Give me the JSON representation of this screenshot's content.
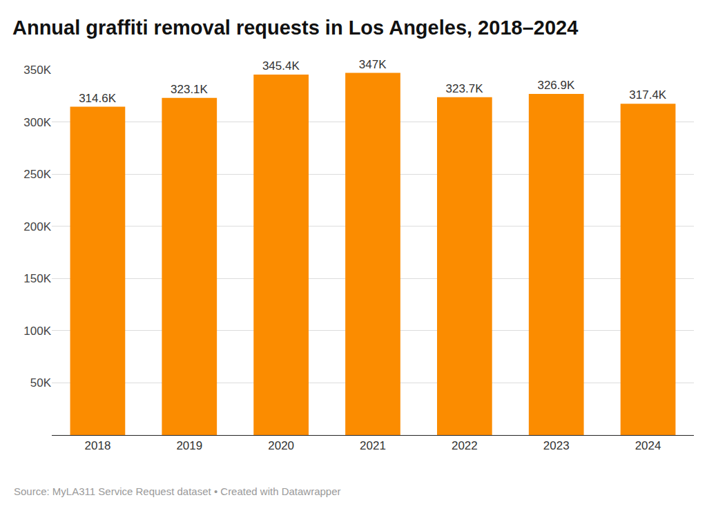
{
  "chart_data": {
    "type": "bar",
    "title": "Annual graffiti removal requests in Los Angeles, 2018–2024",
    "source": "Source: MyLA311 Service Request dataset • Created with Datawrapper",
    "categories": [
      "2018",
      "2019",
      "2020",
      "2021",
      "2022",
      "2023",
      "2024"
    ],
    "values": [
      314600,
      323100,
      345400,
      347000,
      323700,
      326900,
      317400
    ],
    "value_labels": [
      "314.6K",
      "323.1K",
      "345.4K",
      "347K",
      "323.7K",
      "326.9K",
      "317.4K"
    ],
    "color": "#fb8c00",
    "ylim": [
      0,
      350000
    ],
    "yticks": [
      {
        "value": 0,
        "label": ""
      },
      {
        "value": 50000,
        "label": "50K"
      },
      {
        "value": 100000,
        "label": "100K"
      },
      {
        "value": 150000,
        "label": "150K"
      },
      {
        "value": 200000,
        "label": "200K"
      },
      {
        "value": 250000,
        "label": "250K"
      },
      {
        "value": 300000,
        "label": "300K"
      },
      {
        "value": 350000,
        "label": "350K"
      }
    ],
    "grid": true,
    "data_labels": true
  }
}
